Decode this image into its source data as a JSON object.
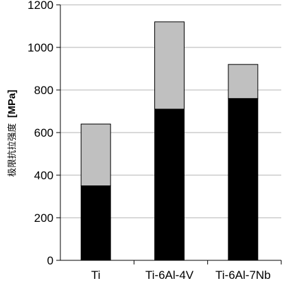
{
  "chart_data": {
    "type": "bar",
    "stacked": true,
    "categories": [
      "Ti",
      "Ti-6Al-4V",
      "Ti-6Al-7Nb"
    ],
    "series": [
      {
        "values": [
          350,
          710,
          760
        ],
        "color": "#000000"
      },
      {
        "values": [
          290,
          410,
          160
        ],
        "color": "#c0c0c0"
      }
    ],
    "totals": [
      640,
      1120,
      920
    ],
    "ylabel_text": "极限抗拉强度",
    "ylabel_unit": "[MPa]",
    "ylim": [
      0,
      1200
    ],
    "yticks": [
      0,
      200,
      400,
      600,
      800,
      1000,
      1200
    ],
    "grid": true
  }
}
